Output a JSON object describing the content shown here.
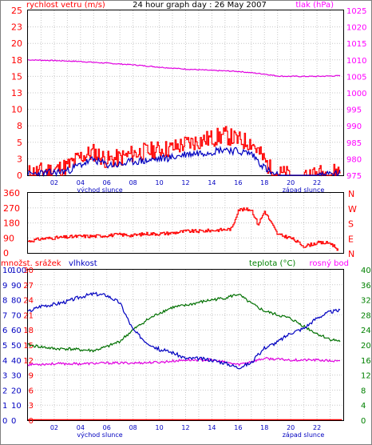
{
  "chart_data": [
    {
      "type": "line",
      "title": "24 hour graph day : 26 May 2007",
      "left_axis_label": "rychlost vetru (m/s)",
      "right_axis_label": "tlak (hPa)",
      "x_tick_labels": [
        "02",
        "04",
        "06",
        "08",
        "10",
        "12",
        "14",
        "16",
        "18",
        "20",
        "22"
      ],
      "x_tick_hours": [
        2,
        4,
        6,
        8,
        10,
        12,
        14,
        16,
        18,
        20,
        22
      ],
      "annotations": [
        {
          "text": "východ slunce",
          "hour": 4.5
        },
        {
          "text": "západ slunce",
          "hour": 20.5
        }
      ],
      "xlim": [
        0,
        24
      ],
      "ylim_left": [
        0,
        25
      ],
      "y_ticks_left": [
        0,
        3,
        5,
        8,
        10,
        13,
        15,
        18,
        20,
        23,
        25
      ],
      "ylim_right": [
        975,
        1025
      ],
      "y_ticks_right": [
        975,
        980,
        985,
        990,
        995,
        1000,
        1005,
        1010,
        1015,
        1020,
        1025
      ],
      "grid": true,
      "colors": {
        "gust": "#ff0000",
        "speed": "#0000c0",
        "pressure": "#e000e0",
        "left_axis": "#ff0000",
        "right_axis": "#ff00ff"
      },
      "series": [
        {
          "axis": "left",
          "color": "#ff0000",
          "points": [
            [
              0,
              0.3
            ],
            [
              1,
              0.6
            ],
            [
              2,
              0.8
            ],
            [
              3,
              1.4
            ],
            [
              4,
              2.8
            ],
            [
              5,
              3.5
            ],
            [
              6,
              2.3
            ],
            [
              7,
              2.6
            ],
            [
              8,
              3.3
            ],
            [
              9,
              3.6
            ],
            [
              10,
              3.9
            ],
            [
              11,
              4.1
            ],
            [
              12,
              4.8
            ],
            [
              13,
              5.2
            ],
            [
              14,
              5.6
            ],
            [
              15,
              6.1
            ],
            [
              16,
              5.3
            ],
            [
              17,
              5.0
            ],
            [
              18,
              2.2
            ],
            [
              18.5,
              0.7
            ],
            [
              19,
              0.2
            ],
            [
              20,
              0
            ],
            [
              21,
              0
            ],
            [
              22,
              0.2
            ],
            [
              23,
              0.4
            ],
            [
              23.8,
              0.6
            ]
          ]
        },
        {
          "axis": "left",
          "color": "#0000c0",
          "points": [
            [
              0,
              0.1
            ],
            [
              1,
              0.3
            ],
            [
              2,
              0.4
            ],
            [
              3,
              0.7
            ],
            [
              4,
              1.6
            ],
            [
              5,
              2.4
            ],
            [
              6,
              1.6
            ],
            [
              7,
              1.6
            ],
            [
              8,
              2.1
            ],
            [
              9,
              2.2
            ],
            [
              10,
              2.5
            ],
            [
              11,
              2.7
            ],
            [
              12,
              3.2
            ],
            [
              13,
              3.4
            ],
            [
              14,
              3.6
            ],
            [
              15,
              4.0
            ],
            [
              16,
              3.6
            ],
            [
              17,
              3.3
            ],
            [
              18,
              1.2
            ],
            [
              18.5,
              0.3
            ],
            [
              19,
              0
            ],
            [
              20,
              0
            ],
            [
              21,
              0
            ],
            [
              22,
              0
            ],
            [
              23,
              0.2
            ],
            [
              23.8,
              0.3
            ]
          ]
        },
        {
          "axis": "right",
          "color": "#e000e0",
          "points": [
            [
              0,
              1010
            ],
            [
              2,
              1009.8
            ],
            [
              4,
              1009.5
            ],
            [
              6,
              1009
            ],
            [
              8,
              1008.5
            ],
            [
              10,
              1007.8
            ],
            [
              12,
              1007.2
            ],
            [
              14,
              1006.8
            ],
            [
              16,
              1006.5
            ],
            [
              18,
              1005.7
            ],
            [
              19,
              1005.1
            ],
            [
              20,
              1005
            ],
            [
              22,
              1005
            ],
            [
              23.8,
              1005.2
            ]
          ]
        }
      ]
    },
    {
      "type": "line",
      "y_tick_labels": [
        "360",
        "270",
        "180",
        "90",
        "0"
      ],
      "ylim": [
        0,
        360
      ],
      "direction_labels": [
        "N",
        "W",
        "S",
        "E",
        "N"
      ],
      "xlim": [
        0,
        24
      ],
      "grid": true,
      "series": [
        {
          "color": "#ff0000",
          "points": [
            [
              0,
              70
            ],
            [
              1,
              85
            ],
            [
              2,
              90
            ],
            [
              3,
              95
            ],
            [
              4,
              100
            ],
            [
              5,
              100
            ],
            [
              6,
              105
            ],
            [
              7,
              110
            ],
            [
              8,
              105
            ],
            [
              9,
              115
            ],
            [
              10,
              115
            ],
            [
              11,
              120
            ],
            [
              12,
              130
            ],
            [
              13,
              130
            ],
            [
              14,
              135
            ],
            [
              15,
              140
            ],
            [
              15.5,
              145
            ],
            [
              16,
              260
            ],
            [
              17,
              260
            ],
            [
              17.5,
              170
            ],
            [
              18,
              250
            ],
            [
              18.5,
              180
            ],
            [
              19,
              110
            ],
            [
              20,
              90
            ],
            [
              21,
              40
            ],
            [
              22,
              60
            ],
            [
              23,
              60
            ],
            [
              23.6,
              20
            ]
          ]
        }
      ]
    },
    {
      "type": "line",
      "header_labels": [
        "množst. srážek",
        "vlhkost",
        "teplota (°C)",
        "rosný bod"
      ],
      "xlim": [
        0,
        24
      ],
      "annotations": [
        {
          "text": "východ slunce",
          "hour": 4.5
        },
        {
          "text": "západ slunce",
          "hour": 20.5
        }
      ],
      "x_tick_labels": [
        "02",
        "04",
        "06",
        "08",
        "10",
        "12",
        "14",
        "16",
        "18",
        "20",
        "22"
      ],
      "ylim_rain": [
        0,
        10
      ],
      "y_ticks_rain": [
        0,
        1,
        2,
        3,
        4,
        5,
        6,
        7,
        8,
        9,
        10
      ],
      "rain_tick_labels": [
        "0",
        "1",
        "2",
        "3",
        "4",
        "5",
        "6",
        "7",
        "8",
        "9",
        "10"
      ],
      "ylim_humidity": [
        0,
        100
      ],
      "humidity_tick_labels": [
        "0",
        "10",
        "20",
        "30",
        "40",
        "50",
        "60",
        "70",
        "80",
        "90",
        "100"
      ],
      "ylim_temp_left": [
        0,
        30
      ],
      "temp_left_tick_labels": [
        "0",
        "3",
        "6",
        "9",
        "12",
        "15",
        "18",
        "21",
        "24",
        "27",
        "30"
      ],
      "ylim_temp_right": [
        0,
        40
      ],
      "y_ticks_temp_right": [
        0,
        4,
        8,
        12,
        16,
        20,
        24,
        28,
        32,
        36,
        40
      ],
      "temp_right_tick_labels": [
        "0",
        "4",
        "8",
        "12",
        "16",
        "20",
        "24",
        "28",
        "32",
        "36",
        "40"
      ],
      "grid": true,
      "colors": {
        "rain": "#ff0000",
        "humidity": "#0000c0",
        "temperature": "#007000",
        "dew_point": "#e000e0"
      },
      "series": [
        {
          "axis": "temp_right",
          "color": "#007000",
          "points": [
            [
              0,
              20
            ],
            [
              1,
              19.5
            ],
            [
              2,
              19
            ],
            [
              3,
              19
            ],
            [
              4,
              18.7
            ],
            [
              5,
              18.5
            ],
            [
              6,
              19.5
            ],
            [
              7,
              21
            ],
            [
              8,
              24
            ],
            [
              9,
              26.5
            ],
            [
              10,
              28.5
            ],
            [
              11,
              30
            ],
            [
              12,
              30.5
            ],
            [
              13,
              31.3
            ],
            [
              14,
              32
            ],
            [
              15,
              32.5
            ],
            [
              16,
              33.5
            ],
            [
              17,
              31
            ],
            [
              18,
              29
            ],
            [
              19,
              28
            ],
            [
              20,
              27
            ],
            [
              21,
              25
            ],
            [
              22,
              23
            ],
            [
              23,
              21.5
            ],
            [
              23.8,
              21
            ]
          ]
        },
        {
          "axis": "humidity",
          "color": "#0000c0",
          "points": [
            [
              0,
              72
            ],
            [
              1,
              76
            ],
            [
              2,
              77
            ],
            [
              3,
              79
            ],
            [
              4,
              82
            ],
            [
              5,
              84
            ],
            [
              6,
              83
            ],
            [
              7,
              78
            ],
            [
              8,
              60
            ],
            [
              9,
              52
            ],
            [
              10,
              47
            ],
            [
              11,
              45
            ],
            [
              12,
              41
            ],
            [
              13,
              41
            ],
            [
              14,
              40
            ],
            [
              15,
              38
            ],
            [
              16,
              35
            ],
            [
              17,
              38
            ],
            [
              18,
              48
            ],
            [
              19,
              52
            ],
            [
              20,
              58
            ],
            [
              21,
              61
            ],
            [
              22,
              68
            ],
            [
              23,
              72
            ],
            [
              23.8,
              73
            ]
          ]
        },
        {
          "axis": "humidity",
          "color": "#e000e0",
          "points": [
            [
              0,
              37
            ],
            [
              2,
              37.5
            ],
            [
              4,
              37.5
            ],
            [
              6,
              38
            ],
            [
              8,
              38
            ],
            [
              10,
              38.5
            ],
            [
              12,
              40
            ],
            [
              14,
              40
            ],
            [
              16,
              37
            ],
            [
              18,
              41
            ],
            [
              20,
              40
            ],
            [
              22,
              40
            ],
            [
              23.8,
              39
            ]
          ]
        },
        {
          "axis": "rain",
          "color": "#ff0000",
          "points": [
            [
              0,
              0.03
            ],
            [
              23.9,
              0.03
            ]
          ]
        }
      ]
    }
  ]
}
